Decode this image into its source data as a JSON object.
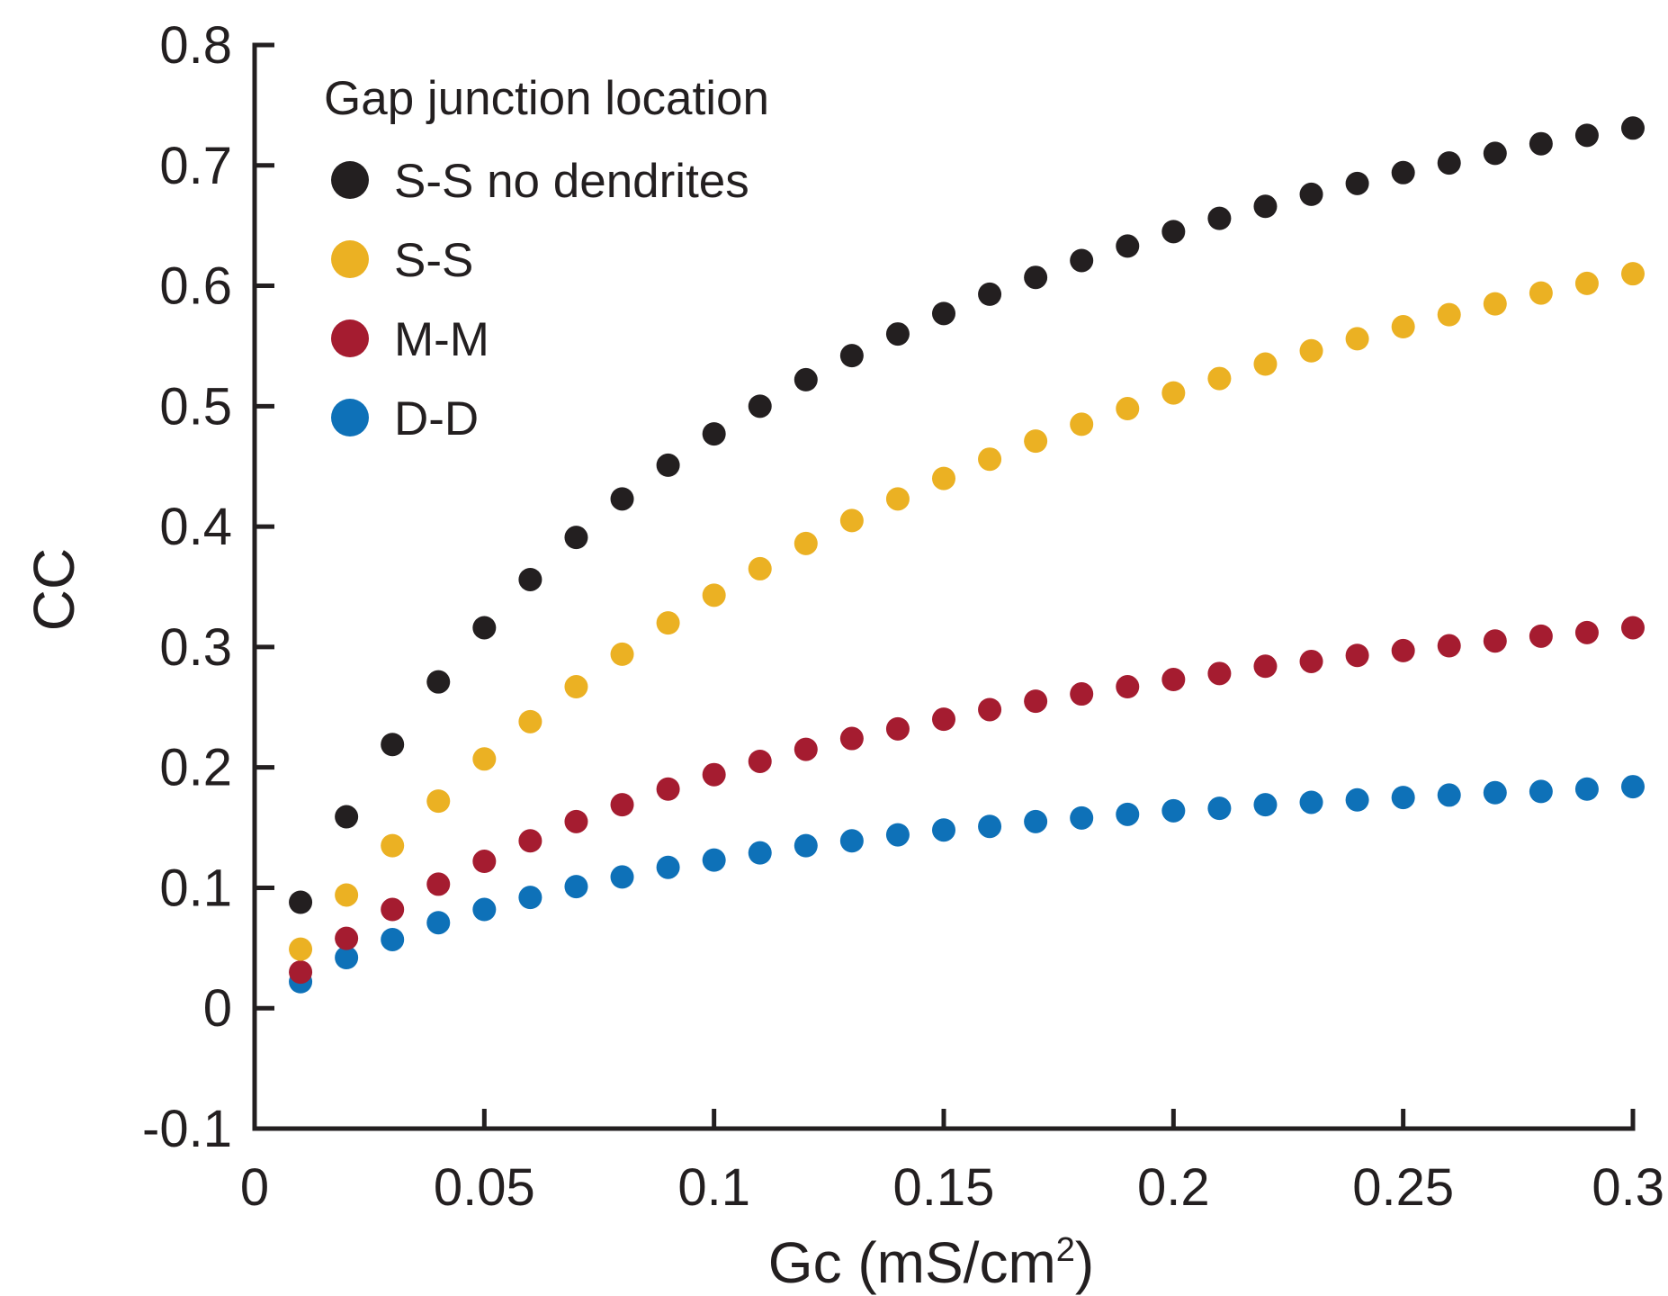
{
  "chart_data": {
    "type": "scatter",
    "xlabel": "Gc (mS/cm",
    "xlabel_superscript": "2",
    "xlabel_suffix": ")",
    "ylabel": "CC",
    "xlim": [
      0,
      0.3
    ],
    "ylim": [
      -0.1,
      0.8
    ],
    "x_ticks": [
      0,
      0.05,
      0.1,
      0.15,
      0.2,
      0.25,
      0.3
    ],
    "x_tick_labels": [
      "0",
      "0.05",
      "0.1",
      "0.15",
      "0.2",
      "0.25",
      "0.3"
    ],
    "y_ticks": [
      -0.1,
      0,
      0.1,
      0.2,
      0.3,
      0.4,
      0.5,
      0.6,
      0.7,
      0.8
    ],
    "y_tick_labels": [
      "-0.1",
      "0",
      "0.1",
      "0.2",
      "0.3",
      "0.4",
      "0.5",
      "0.6",
      "0.7",
      "0.8"
    ],
    "grid": false,
    "legend": {
      "title": "Gap junction location",
      "position": "top-left"
    },
    "x": [
      0.01,
      0.02,
      0.03,
      0.04,
      0.05,
      0.06,
      0.07,
      0.08,
      0.09,
      0.1,
      0.11,
      0.12,
      0.13,
      0.14,
      0.15,
      0.16,
      0.17,
      0.18,
      0.19,
      0.2,
      0.21,
      0.22,
      0.23,
      0.24,
      0.25,
      0.26,
      0.27,
      0.28,
      0.29,
      0.3
    ],
    "series": [
      {
        "name": "S-S no dendrites",
        "color": "#231f20",
        "values": [
          0.088,
          0.159,
          0.219,
          0.271,
          0.316,
          0.356,
          0.391,
          0.423,
          0.451,
          0.477,
          0.5,
          0.522,
          0.542,
          0.56,
          0.577,
          0.593,
          0.607,
          0.621,
          0.633,
          0.645,
          0.656,
          0.666,
          0.676,
          0.685,
          0.694,
          0.702,
          0.71,
          0.718,
          0.725,
          0.731
        ]
      },
      {
        "name": "S-S",
        "color": "#ebb123",
        "values": [
          0.049,
          0.094,
          0.135,
          0.172,
          0.207,
          0.238,
          0.267,
          0.294,
          0.32,
          0.343,
          0.365,
          0.386,
          0.405,
          0.423,
          0.44,
          0.456,
          0.471,
          0.485,
          0.498,
          0.511,
          0.523,
          0.535,
          0.546,
          0.556,
          0.566,
          0.576,
          0.585,
          0.594,
          0.602,
          0.61
        ]
      },
      {
        "name": "M-M",
        "color": "#a51c30",
        "values": [
          0.03,
          0.058,
          0.082,
          0.103,
          0.122,
          0.139,
          0.155,
          0.169,
          0.182,
          0.194,
          0.205,
          0.215,
          0.224,
          0.232,
          0.24,
          0.248,
          0.255,
          0.261,
          0.267,
          0.273,
          0.278,
          0.284,
          0.288,
          0.293,
          0.297,
          0.301,
          0.305,
          0.309,
          0.312,
          0.316
        ]
      },
      {
        "name": "D-D",
        "color": "#0e71b8",
        "values": [
          0.022,
          0.042,
          0.057,
          0.071,
          0.082,
          0.092,
          0.101,
          0.109,
          0.117,
          0.123,
          0.129,
          0.135,
          0.139,
          0.144,
          0.148,
          0.151,
          0.155,
          0.158,
          0.161,
          0.164,
          0.166,
          0.169,
          0.171,
          0.173,
          0.175,
          0.177,
          0.179,
          0.18,
          0.182,
          0.184
        ]
      }
    ]
  }
}
